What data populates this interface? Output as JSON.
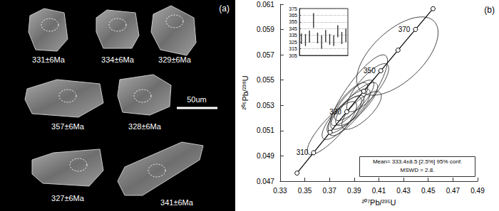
{
  "panel_a": {
    "label": "(a)",
    "scale_bar": "50um",
    "grains": [
      {
        "age_label": "331±6Ma"
      },
      {
        "age_label": "334±6Ma"
      },
      {
        "age_label": "329±6Ma"
      },
      {
        "age_label": "357±6Ma"
      },
      {
        "age_label": "328±6Ma"
      },
      {
        "age_label": "327±6Ma"
      },
      {
        "age_label": "341±6Ma"
      }
    ]
  },
  "chart_data": {
    "type": "ellipse",
    "panel_label": "(b)",
    "x_label": "²⁰⁷Pb/²³⁵U",
    "y_label": "²⁰⁶Pb/²³⁸U",
    "xlim": [
      0.33,
      0.49
    ],
    "xticks": [
      0.33,
      0.35,
      0.37,
      0.39,
      0.41,
      0.43,
      0.45,
      0.47,
      0.49
    ],
    "ylim": [
      0.047,
      0.061
    ],
    "yticks": [
      0.047,
      0.049,
      0.051,
      0.053,
      0.055,
      0.057,
      0.059,
      0.061
    ],
    "grid": false,
    "color": "#333333",
    "ellipses": {
      "x": [
        0.387,
        0.383,
        0.392,
        0.38,
        0.39,
        0.393,
        0.372,
        0.396,
        0.386,
        0.401,
        0.425
      ],
      "y": [
        0.0527,
        0.0523,
        0.0531,
        0.052,
        0.0534,
        0.0538,
        0.0512,
        0.0526,
        0.0531,
        0.0544,
        0.0569
      ],
      "x_err": [
        0.016,
        0.015,
        0.017,
        0.016,
        0.016,
        0.024,
        0.02,
        0.016,
        0.015,
        0.017,
        0.033
      ],
      "y_err": [
        0.0016,
        0.0015,
        0.0017,
        0.0017,
        0.0016,
        0.0032,
        0.0021,
        0.0015,
        0.0017,
        0.0019,
        0.0031
      ],
      "rho": [
        0.8,
        0.8,
        0.8,
        0.8,
        0.8,
        0.85,
        0.85,
        0.75,
        0.8,
        0.8,
        0.6
      ]
    },
    "concordia": {
      "x": [
        0.3437,
        0.3571,
        0.3705,
        0.384,
        0.3977,
        0.4116,
        0.4255,
        0.4397,
        0.4539
      ],
      "y": [
        0.04764,
        0.04925,
        0.05087,
        0.05249,
        0.05412,
        0.05574,
        0.05737,
        0.05901,
        0.06065
      ],
      "labels": [
        null,
        310,
        null,
        330,
        null,
        350,
        null,
        370,
        null
      ]
    },
    "annotation": [
      "Mean= 333.4±8.5 [2.5%] 95% conf.",
      "MSWD = 2.8."
    ],
    "inset": {
      "type": "errorbar",
      "values": [
        330,
        328,
        333,
        357,
        331,
        325,
        334,
        329,
        327,
        341,
        331,
        335
      ],
      "errors": [
        8,
        9,
        9,
        11,
        8,
        10,
        9,
        8,
        8,
        9,
        9,
        10
      ],
      "ylim": [
        305,
        375
      ],
      "yticks": [
        305,
        315,
        325,
        335,
        345,
        355,
        365,
        375
      ],
      "grid": true,
      "tick_labels": "y"
    }
  }
}
